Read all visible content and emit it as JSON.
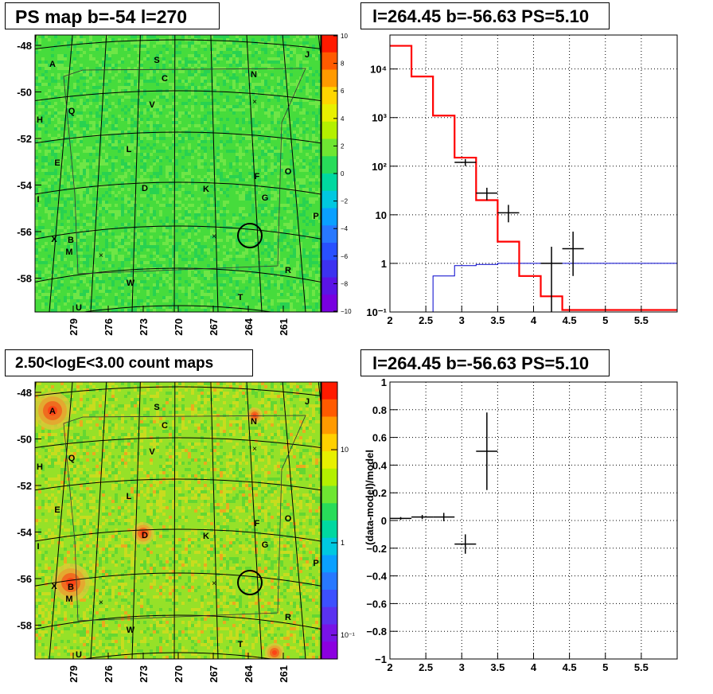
{
  "titles": {
    "ps_map": "PS map b=-54 l=270",
    "spectrum": "l=264.45 b=-56.63 PS=5.10",
    "count_maps": "2.50<logE<3.00 count maps",
    "residual": "l=264.45 b=-56.63 PS=5.10"
  },
  "colors": {
    "model": "#ff0000",
    "background_model": "#0000cc",
    "data": "#000000",
    "ps_map_fill": "#33dd33",
    "count_map_fill": "#99e020"
  },
  "chart_data": [
    {
      "type": "heatmap",
      "name": "PS map",
      "x_ticks": [
        "279",
        "276",
        "273",
        "270",
        "267",
        "264",
        "261"
      ],
      "y_ticks": [
        "-48",
        "-50",
        "-52",
        "-54",
        "-56",
        "-58"
      ],
      "colorbar": {
        "min": -10,
        "max": 10,
        "ticks": [
          "10",
          "8",
          "6",
          "4",
          "2",
          "0",
          "−2",
          "−4",
          "−6",
          "−8",
          "−10"
        ]
      },
      "source_labels": [
        "A",
        "S",
        "J",
        "C",
        "N",
        "H",
        "Q",
        "V",
        "L",
        "E",
        "D",
        "K",
        "F",
        "O",
        "G",
        "I",
        "P",
        "X",
        "B",
        "M",
        "R",
        "W",
        "T",
        "U"
      ]
    },
    {
      "type": "line",
      "name": "spectrum",
      "log_y": true,
      "xlim": [
        2,
        6
      ],
      "ylim": [
        0.1,
        50000
      ],
      "x_ticks": [
        "2",
        "2.5",
        "3",
        "3.5",
        "4",
        "4.5",
        "5",
        "5.5"
      ],
      "y_ticks": [
        "10⁻¹",
        "1",
        "10",
        "10²",
        "10³",
        "10⁴"
      ],
      "model_steps": {
        "edges": [
          2.0,
          2.3,
          2.6,
          2.9,
          3.2,
          3.5,
          3.8,
          4.1,
          4.4,
          6.0
        ],
        "values": [
          30000,
          7000,
          1100,
          150,
          20,
          2.8,
          0.55,
          0.21,
          0.11
        ]
      },
      "bg_steps": {
        "edges": [
          2.3,
          2.6,
          2.9,
          3.2,
          3.5,
          3.8,
          4.1,
          6.0
        ],
        "values": [
          0.1,
          0.55,
          0.9,
          0.95,
          1.0,
          1.0,
          1.0
        ]
      },
      "data_points": [
        {
          "x": 3.05,
          "y": 120,
          "xerr": 0.15,
          "ylo": 100,
          "yhi": 140
        },
        {
          "x": 3.35,
          "y": 28,
          "xerr": 0.15,
          "ylo": 20,
          "yhi": 36
        },
        {
          "x": 3.65,
          "y": 11,
          "xerr": 0.15,
          "ylo": 7,
          "yhi": 16
        },
        {
          "x": 4.25,
          "y": 1.0,
          "xerr": 0.15,
          "ylo": 0.1,
          "yhi": 2.2
        },
        {
          "x": 4.55,
          "y": 2.0,
          "xerr": 0.15,
          "ylo": 0.55,
          "yhi": 4.5
        }
      ]
    },
    {
      "type": "heatmap",
      "name": "count maps",
      "x_ticks": [
        "279",
        "276",
        "273",
        "270",
        "267",
        "264",
        "261"
      ],
      "y_ticks": [
        "-48",
        "-50",
        "-52",
        "-54",
        "-56",
        "-58"
      ],
      "colorbar": {
        "log": true,
        "ticks": [
          "10",
          "1",
          "10⁻¹"
        ]
      },
      "source_labels": [
        "A",
        "S",
        "J",
        "C",
        "N",
        "H",
        "Q",
        "V",
        "L",
        "E",
        "D",
        "K",
        "F",
        "O",
        "G",
        "I",
        "P",
        "X",
        "B",
        "M",
        "R",
        "W",
        "T",
        "U"
      ]
    },
    {
      "type": "scatter",
      "name": "residual",
      "ylabel": "(data-model)/model",
      "xlim": [
        2,
        6
      ],
      "ylim": [
        -1,
        1
      ],
      "x_ticks": [
        "2",
        "2.5",
        "3",
        "3.5",
        "4",
        "4.5",
        "5",
        "5.5"
      ],
      "y_ticks": [
        "1",
        "0.8",
        "0.6",
        "0.4",
        "0.2",
        "0",
        "−0.2",
        "−0.4",
        "−0.6",
        "−0.8",
        "−1"
      ],
      "data_points": [
        {
          "x": 2.15,
          "y": 0.015,
          "xerr": 0.15,
          "yerr": 0.01
        },
        {
          "x": 2.45,
          "y": 0.025,
          "xerr": 0.15,
          "yerr": 0.015
        },
        {
          "x": 2.75,
          "y": 0.025,
          "xerr": 0.15,
          "yerr": 0.03
        },
        {
          "x": 3.05,
          "y": -0.17,
          "xerr": 0.15,
          "yerr": 0.07
        },
        {
          "x": 3.35,
          "y": 0.5,
          "xerr": 0.15,
          "yerr": 0.28
        }
      ]
    }
  ]
}
